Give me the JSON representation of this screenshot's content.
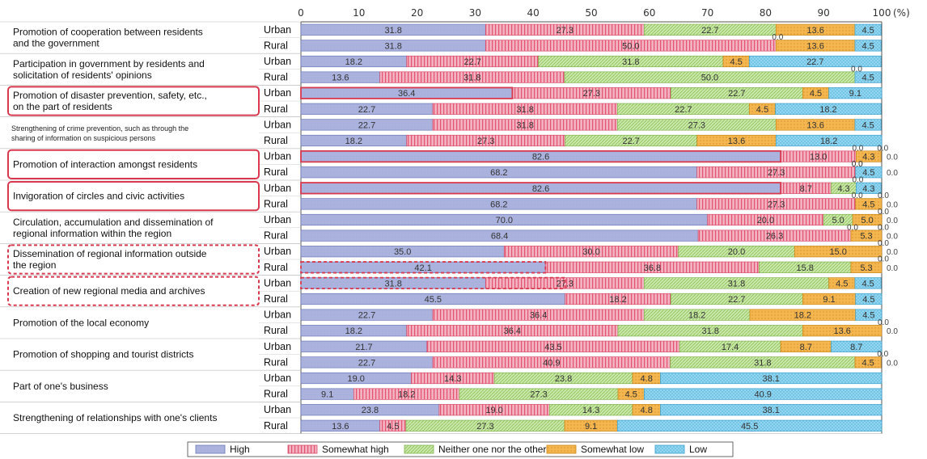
{
  "chart_data": {
    "type": "bar",
    "orientation": "horizontal",
    "stacked": true,
    "x_unit_label": "(%)",
    "xlim": [
      0,
      100
    ],
    "xticks": [
      "0",
      "10",
      "20",
      "30",
      "40",
      "50",
      "60",
      "70",
      "80",
      "90",
      "100"
    ],
    "grid": false,
    "legend_position": "bottom",
    "series_names": [
      "High",
      "Somewhat high",
      "Neither one nor the other",
      "Somewhat low",
      "Low"
    ],
    "colors": [
      "#aab2dd",
      "#f0a7b8",
      "#c2e2a0",
      "#f2b24c",
      "#8cd2ee"
    ],
    "groups": [
      {
        "label": "Promotion of cooperation between residents and the government",
        "lines": [
          "Promotion of cooperation between residents",
          "and the government"
        ],
        "style": "normal",
        "rows": [
          {
            "sub": "Urban",
            "values": [
              31.8,
              27.3,
              22.7,
              13.6,
              4.5
            ],
            "labels": [
              "31.8",
              "27.3",
              "22.7",
              "13.6",
              "4.5"
            ],
            "trailing": []
          },
          {
            "sub": "Rural",
            "values": [
              31.8,
              50.0,
              0,
              13.6,
              4.5
            ],
            "labels": [
              "31.8",
              "50.0",
              "0.0",
              "13.6",
              "4.5"
            ],
            "trailing": []
          }
        ]
      },
      {
        "label": "Participation in government by residents and solicitation of residents' opinions",
        "lines": [
          "Participation in government by residents and",
          "solicitation of residents' opinions"
        ],
        "style": "normal",
        "rows": [
          {
            "sub": "Urban",
            "values": [
              18.2,
              22.7,
              31.8,
              4.5,
              22.7
            ],
            "labels": [
              "18.2",
              "22.7",
              "31.8",
              "4.5",
              "22.7"
            ],
            "trailing": []
          },
          {
            "sub": "Rural",
            "values": [
              13.6,
              31.8,
              50.0,
              0,
              4.5
            ],
            "labels": [
              "13.6",
              "31.8",
              "50.0",
              "0.0",
              "4.5"
            ],
            "trailing": []
          }
        ]
      },
      {
        "label": "Promotion of disaster prevention, safety, etc., on the part of residents",
        "lines": [
          "Promotion of disaster prevention, safety, etc.,",
          "on the part of residents"
        ],
        "style": "solid",
        "rows": [
          {
            "sub": "Urban",
            "values": [
              36.4,
              27.3,
              22.7,
              4.5,
              9.1
            ],
            "labels": [
              "36.4",
              "27.3",
              "22.7",
              "4.5",
              "9.1"
            ],
            "trailing": []
          },
          {
            "sub": "Rural",
            "values": [
              22.7,
              31.8,
              22.7,
              4.5,
              18.2
            ],
            "labels": [
              "22.7",
              "31.8",
              "22.7",
              "4.5",
              "18.2"
            ],
            "trailing": []
          }
        ]
      },
      {
        "label": "Strengthening of crime prevention, such as through the sharing of information on suspicious persons",
        "lines": [
          "Strengthening of crime prevention, such as through the",
          "sharing of information on suspicious persons"
        ],
        "style": "small",
        "rows": [
          {
            "sub": "Urban",
            "values": [
              22.7,
              31.8,
              27.3,
              13.6,
              4.5
            ],
            "labels": [
              "22.7",
              "31.8",
              "27.3",
              "13.6",
              "4.5"
            ],
            "trailing": []
          },
          {
            "sub": "Rural",
            "values": [
              18.2,
              27.3,
              22.7,
              13.6,
              18.2
            ],
            "labels": [
              "18.2",
              "27.3",
              "22.7",
              "13.6",
              "18.2"
            ],
            "trailing": []
          }
        ]
      },
      {
        "label": "Promotion of interaction amongst residents",
        "lines": [
          "Promotion of interaction amongst residents"
        ],
        "style": "solid",
        "rows": [
          {
            "sub": "Urban",
            "values": [
              82.6,
              13.0,
              0,
              4.3,
              0
            ],
            "labels": [
              "82.6",
              "13.0",
              "0.0",
              "4.3",
              "0.0"
            ],
            "trailing": [
              "0.0"
            ]
          },
          {
            "sub": "Rural",
            "values": [
              68.2,
              27.3,
              0,
              0,
              4.5
            ],
            "labels": [
              "68.2",
              "27.3",
              "0.0",
              "0.0",
              "4.5"
            ],
            "trailing": [
              "0.0"
            ]
          }
        ]
      },
      {
        "label": "Invigoration of circles and civic activities",
        "lines": [
          "Invigoration of circles and civic activities"
        ],
        "style": "solid",
        "rows": [
          {
            "sub": "Urban",
            "values": [
              82.6,
              8.7,
              4.3,
              0,
              4.3
            ],
            "labels": [
              "82.6",
              "8.7",
              "4.3",
              "0.0",
              "4.3"
            ],
            "trailing": []
          },
          {
            "sub": "Rural",
            "values": [
              68.2,
              27.3,
              0,
              4.5,
              0
            ],
            "labels": [
              "68.2",
              "27.3",
              "0.0",
              "4.5",
              "0.0"
            ],
            "trailing": [
              "0.0"
            ]
          }
        ]
      },
      {
        "label": "Circulation, accumulation and dissemination of regional information within the region",
        "lines": [
          "Circulation, accumulation and dissemination of",
          "regional information within the region"
        ],
        "style": "normal",
        "rows": [
          {
            "sub": "Urban",
            "values": [
              70.0,
              20.0,
              5.0,
              5.0,
              0
            ],
            "labels": [
              "70.0",
              "20.0",
              "5.0",
              "5.0",
              "0.0"
            ],
            "trailing": [
              "0.0"
            ]
          },
          {
            "sub": "Rural",
            "values": [
              68.4,
              26.3,
              0,
              5.3,
              0
            ],
            "labels": [
              "68.4",
              "26.3",
              "0.0",
              "5.3",
              "0.0"
            ],
            "trailing": [
              "0.0"
            ]
          }
        ]
      },
      {
        "label": "Dissemination of regional information outside the region",
        "lines": [
          "Dissemination of regional information outside",
          "the region"
        ],
        "style": "dashed",
        "rows": [
          {
            "sub": "Urban",
            "values": [
              35.0,
              30.0,
              20.0,
              15.0,
              0
            ],
            "labels": [
              "35.0",
              "30.0",
              "20.0",
              "15.0",
              "0.0"
            ],
            "trailing": [
              "0.0"
            ]
          },
          {
            "sub": "Rural",
            "values": [
              42.1,
              36.8,
              15.8,
              5.3,
              0
            ],
            "labels": [
              "42.1",
              "36.8",
              "15.8",
              "5.3",
              "0.0"
            ],
            "trailing": [
              "0.0"
            ]
          }
        ]
      },
      {
        "label": "Creation of new regional media and archives",
        "lines": [
          "Creation of new regional media and archives"
        ],
        "style": "dashed",
        "rows": [
          {
            "sub": "Urban",
            "values": [
              31.8,
              27.3,
              31.8,
              4.5,
              4.5
            ],
            "labels": [
              "31.8",
              "27.3",
              "31.8",
              "4.5",
              "4.5"
            ],
            "trailing": []
          },
          {
            "sub": "Rural",
            "values": [
              45.5,
              18.2,
              22.7,
              9.1,
              4.5
            ],
            "labels": [
              "45.5",
              "18.2",
              "22.7",
              "9.1",
              "4.5"
            ],
            "trailing": []
          }
        ]
      },
      {
        "label": "Promotion of the local economy",
        "lines": [
          "Promotion of the local economy"
        ],
        "style": "normal",
        "rows": [
          {
            "sub": "Urban",
            "values": [
              22.7,
              36.4,
              18.2,
              18.2,
              4.5
            ],
            "labels": [
              "22.7",
              "36.4",
              "18.2",
              "18.2",
              "4.5"
            ],
            "trailing": []
          },
          {
            "sub": "Rural",
            "values": [
              18.2,
              36.4,
              31.8,
              13.6,
              0
            ],
            "labels": [
              "18.2",
              "36.4",
              "31.8",
              "13.6",
              "0.0"
            ],
            "trailing": [
              "0.0"
            ]
          }
        ]
      },
      {
        "label": "Promotion of shopping and tourist districts",
        "lines": [
          "Promotion of shopping and tourist districts"
        ],
        "style": "normal",
        "rows": [
          {
            "sub": "Urban",
            "values": [
              21.7,
              43.5,
              17.4,
              8.7,
              8.7
            ],
            "labels": [
              "21.7",
              "43.5",
              "17.4",
              "8.7",
              "8.7"
            ],
            "trailing": []
          },
          {
            "sub": "Rural",
            "values": [
              22.7,
              40.9,
              31.8,
              4.5,
              0
            ],
            "labels": [
              "22.7",
              "40.9",
              "31.8",
              "4.5",
              "0.0"
            ],
            "trailing": [
              "0.0"
            ]
          }
        ]
      },
      {
        "label": "Part of one's business",
        "lines": [
          "Part of one's business"
        ],
        "style": "normal",
        "rows": [
          {
            "sub": "Urban",
            "values": [
              19.0,
              14.3,
              23.8,
              4.8,
              38.1
            ],
            "labels": [
              "19.0",
              "14.3",
              "23.8",
              "4.8",
              "38.1"
            ],
            "trailing": []
          },
          {
            "sub": "Rural",
            "values": [
              9.1,
              18.2,
              27.3,
              4.5,
              40.9
            ],
            "labels": [
              "9.1",
              "18.2",
              "27.3",
              "4.5",
              "40.9"
            ],
            "trailing": []
          }
        ]
      },
      {
        "label": "Strengthening of relationships with one's clients",
        "lines": [
          "Strengthening of relationships with one's clients"
        ],
        "style": "normal",
        "rows": [
          {
            "sub": "Urban",
            "values": [
              23.8,
              19.0,
              14.3,
              4.8,
              38.1
            ],
            "labels": [
              "23.8",
              "19.0",
              "14.3",
              "4.8",
              "38.1"
            ],
            "trailing": []
          },
          {
            "sub": "Rural",
            "values": [
              13.6,
              4.5,
              27.3,
              9.1,
              45.5
            ],
            "labels": [
              "13.6",
              "4.5",
              "27.3",
              "9.1",
              "45.5"
            ],
            "trailing": []
          }
        ]
      }
    ]
  }
}
